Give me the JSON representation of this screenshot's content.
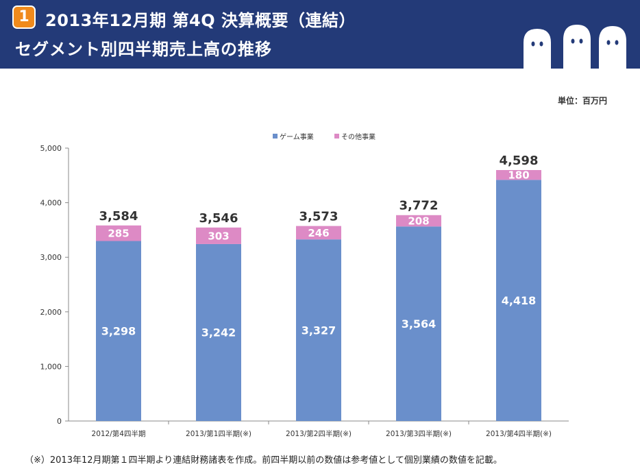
{
  "header": {
    "badge": "1",
    "title_line1": "2013年12月期  第4Q 決算概要（連結）",
    "title_line2": "セグメント別四半期売上高の推移",
    "background": "#233a78",
    "badge_color": "#f08a1c"
  },
  "unit_label": "単位：百万円",
  "footnote": "（※）2013年12月期第１四半期より連結財務諸表を作成。前四半期以前の数値は参考値として個別業績の数値を記載。",
  "chart_data": {
    "type": "bar",
    "stacked": true,
    "categories": [
      "2012/第4四半期",
      "2013/第1四半期(※)",
      "2013/第2四半期(※)",
      "2013/第3四半期(※)",
      "2013/第4四半期(※)"
    ],
    "series": [
      {
        "name": "ゲーム事業",
        "values": [
          3298,
          3242,
          3327,
          3564,
          4418
        ],
        "labels": [
          "3,298",
          "3,242",
          "3,327",
          "3,564",
          "4,418"
        ],
        "color": "#6a8fcb"
      },
      {
        "name": "その他事業",
        "values": [
          285,
          303,
          246,
          208,
          180
        ],
        "labels": [
          "285",
          "303",
          "246",
          "208",
          "180"
        ],
        "color": "#dd8ac5"
      }
    ],
    "totals": [
      "3,584",
      "3,546",
      "3,573",
      "3,772",
      "4,598"
    ],
    "yticks": [
      "0",
      "1,000",
      "2,000",
      "3,000",
      "4,000",
      "5,000"
    ],
    "ylim": [
      0,
      5000
    ],
    "legend_position": "top-center",
    "grid": false
  }
}
